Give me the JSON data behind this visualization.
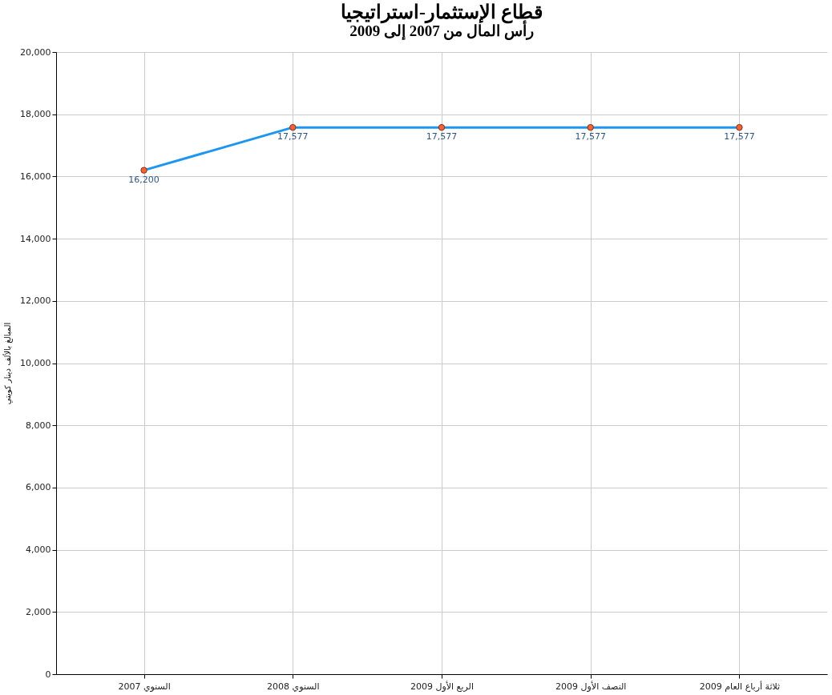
{
  "chart_data": {
    "type": "line",
    "title": "قطاع الإستثمار-استراتيجيا",
    "subtitle": "رأس المال من 2007 إلى 2009",
    "ylabel": "المبالغ بالألف دينار كويتي",
    "categories": [
      "السنوي 2007",
      "السنوي 2008",
      "الربع الأول 2009",
      "النصف الأول 2009",
      "ثلاثة أرباع العام 2009"
    ],
    "series": [
      {
        "color": "#1e96f0",
        "values": [
          16200,
          17577,
          17577,
          17577,
          17577
        ],
        "value_labels": [
          "16,200",
          "17,577",
          "17,577",
          "17,577",
          "17,577"
        ]
      }
    ],
    "ylim": [
      0,
      20000
    ],
    "yticks": [
      0,
      {
        "value": 2000,
        "label": "2,000"
      },
      {
        "value": 4000,
        "label": "4,000"
      },
      {
        "value": 6000,
        "label": "6,000"
      },
      {
        "value": 8000,
        "label": "8,000"
      },
      {
        "value": 10000,
        "label": "10,000"
      },
      {
        "value": 12000,
        "label": "12,000"
      },
      {
        "value": 14000,
        "label": "14,000"
      },
      {
        "value": 16000,
        "label": "16,000"
      },
      {
        "value": 18000,
        "label": "18,000"
      },
      {
        "value": 20000,
        "label": "20,000"
      }
    ],
    "grid": true,
    "marker": "circle",
    "legend": false
  }
}
